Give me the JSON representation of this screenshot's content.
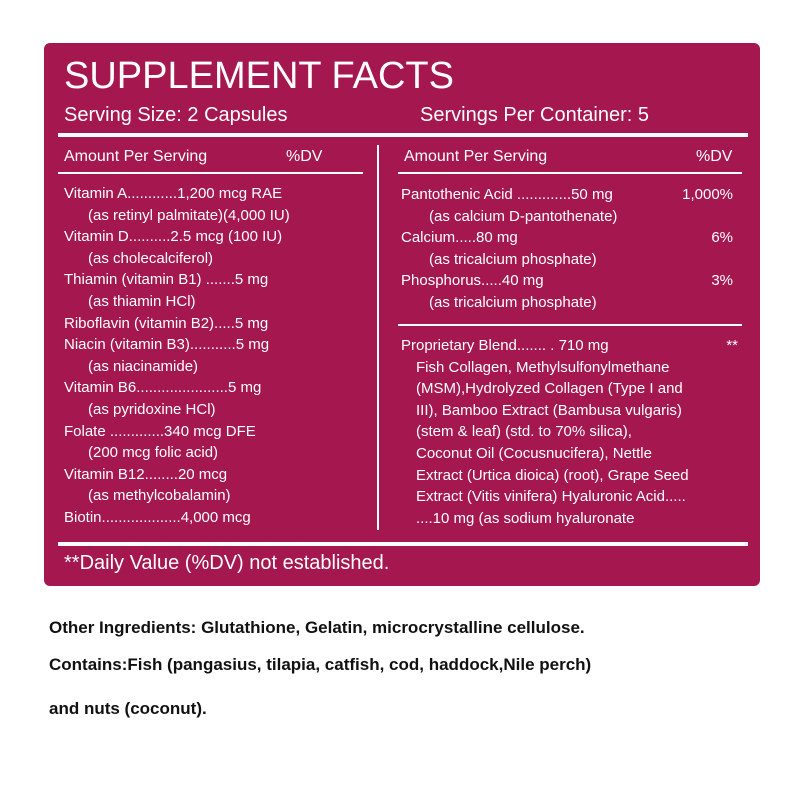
{
  "label": {
    "title": "SUPPLEMENT FACTS",
    "serving_size": "Serving Size: 2 Capsules",
    "servings_per_container": "Servings Per Container: 5",
    "left": {
      "header": {
        "amount": "Amount Per Serving",
        "dv": "%DV"
      },
      "items": [
        {
          "text": "Vitamin A............1,200 mcg RAE",
          "note": "(as retinyl palmitate)(4,000 IU)"
        },
        {
          "text": "Vitamin D..........2.5 mcg (100 IU)",
          "note": "(as cholecalciferol)"
        },
        {
          "text": "Thiamin (vitamin B1) .......5 mg",
          "note": "(as thiamin HCl)"
        },
        {
          "text": "Riboflavin (vitamin B2).....5 mg"
        },
        {
          "text": "Niacin (vitamin B3)...........5 mg",
          "note": "(as niacinamide)"
        },
        {
          "text": "Vitamin B6......................5 mg",
          "note": "(as pyridoxine HCl)"
        },
        {
          "text": "Folate .............340 mcg DFE",
          "note": "(200 mcg folic acid)"
        },
        {
          "text": "Vitamin B12........20 mcg",
          "note": "(as methylcobalamin)"
        },
        {
          "text": "Biotin...................4,000 mcg"
        }
      ]
    },
    "right": {
      "header": {
        "amount": "Amount Per Serving",
        "dv": "%DV"
      },
      "items": [
        {
          "text": "Pantothenic Acid .............50 mg",
          "dv": "1,000%",
          "note": "(as calcium D-pantothenate)"
        },
        {
          "text": "Calcium.....80 mg",
          "dv": "6%",
          "note": "(as tricalcium phosphate)"
        },
        {
          "text": "Phosphorus.....40 mg",
          "dv": "3%",
          "note": "(as tricalcium phosphate)"
        }
      ],
      "blend": {
        "text": "Proprietary Blend....... .  710 mg",
        "dv": "**",
        "lines": [
          "Fish Collagen, Methylsulfonylmethane",
          "(MSM),Hydrolyzed Collagen (Type I and",
          "III), Bamboo Extract (Bambusa vulgaris)",
          "(stem & leaf) (std. to 70% silica),",
          "Coconut Oil (Cocusnucifera), Nettle",
          "Extract (Urtica dioica) (root), Grape Seed",
          "Extract (Vitis vinifera) Hyaluronic Acid.....",
          "....10 mg   (as sodium hyaluronate"
        ]
      }
    },
    "footnote": "**Daily Value (%DV) not established."
  },
  "other": {
    "ingredients": "Other Ingredients: Glutathione, Gelatin, microcrystalline cellulose.",
    "contains": [
      "Contains:Fish (pangasius, tilapia, catfish, cod, haddock,Nile perch)",
      "and nuts (coconut)."
    ]
  }
}
